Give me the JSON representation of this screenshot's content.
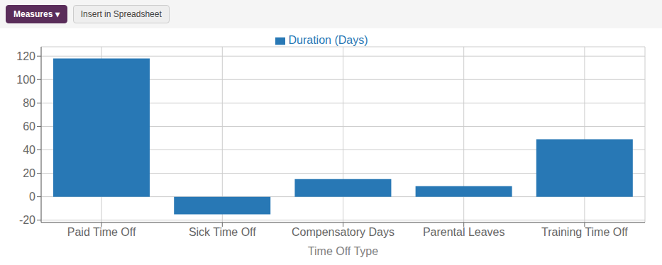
{
  "chart_data": {
    "type": "bar",
    "categories": [
      "Paid Time Off",
      "Sick Time Off",
      "Compensatory Days",
      "Parental Leaves",
      "Training Time Off"
    ],
    "series": [
      {
        "name": "Duration (Days)",
        "color": "#2878b5",
        "values": [
          118,
          -15,
          15,
          9,
          49
        ]
      }
    ],
    "xlabel": "Time Off Type",
    "ylim": [
      -22,
      128
    ],
    "yticks": [
      -20,
      0,
      20,
      40,
      60,
      80,
      100,
      120
    ],
    "grid": true,
    "legend": "top",
    "annotations": [
      "Measures ▾",
      "Insert in Spreadsheet"
    ]
  }
}
